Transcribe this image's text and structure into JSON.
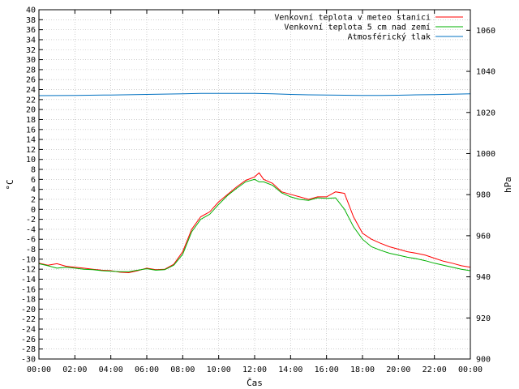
{
  "chart_data": {
    "type": "line",
    "xlabel": "Čas",
    "ylabel_left": "°C",
    "ylabel_right": "hPa",
    "x_ticks": [
      "00:00",
      "02:00",
      "04:00",
      "06:00",
      "08:00",
      "10:00",
      "12:00",
      "14:00",
      "16:00",
      "18:00",
      "20:00",
      "22:00",
      "00:00"
    ],
    "xlim": [
      0,
      24
    ],
    "ylim_left": [
      -30,
      40
    ],
    "ylim_right": [
      900,
      1070
    ],
    "y_ticks_left": [
      -30,
      -28,
      -26,
      -24,
      -22,
      -20,
      -18,
      -16,
      -14,
      -12,
      -10,
      -8,
      -6,
      -4,
      -2,
      0,
      2,
      4,
      6,
      8,
      10,
      12,
      14,
      16,
      18,
      20,
      22,
      24,
      26,
      28,
      30,
      32,
      34,
      36,
      38,
      40
    ],
    "y_ticks_right": [
      900,
      920,
      940,
      960,
      980,
      1000,
      1020,
      1040,
      1060
    ],
    "grid": "on",
    "legend_position": "top-right",
    "series": [
      {
        "name": "Venkovní teplota v meteo stanici",
        "axis": "left",
        "color": "#ff0000",
        "x": [
          0,
          0.5,
          1,
          1.5,
          2,
          2.5,
          3,
          3.5,
          4,
          4.5,
          5,
          5.5,
          6,
          6.5,
          7,
          7.5,
          8,
          8.5,
          9,
          9.5,
          10,
          10.5,
          11,
          11.5,
          12,
          12.25,
          12.5,
          13,
          13.5,
          14,
          14.5,
          15,
          15.5,
          16,
          16.5,
          17,
          17.5,
          18,
          18.5,
          19,
          19.5,
          20,
          20.5,
          21,
          21.5,
          22,
          22.5,
          23,
          23.5,
          24
        ],
        "values": [
          -10.8,
          -11.2,
          -10.9,
          -11.4,
          -11.6,
          -11.8,
          -12.0,
          -12.2,
          -12.3,
          -12.6,
          -12.7,
          -12.3,
          -11.8,
          -12.1,
          -12.0,
          -11.0,
          -8.5,
          -4.0,
          -1.5,
          -0.5,
          1.5,
          3.0,
          4.5,
          5.8,
          6.5,
          7.3,
          6.0,
          5.2,
          3.5,
          3.0,
          2.5,
          2.0,
          2.5,
          2.5,
          3.5,
          3.2,
          -1.5,
          -4.8,
          -6.0,
          -6.8,
          -7.5,
          -8.0,
          -8.5,
          -8.8,
          -9.2,
          -9.8,
          -10.4,
          -10.8,
          -11.3,
          -11.6
        ]
      },
      {
        "name": "Venkovní teplota 5 cm nad zemí",
        "axis": "left",
        "color": "#00b000",
        "x": [
          0,
          0.5,
          1,
          1.5,
          2,
          2.5,
          3,
          3.5,
          4,
          4.5,
          5,
          5.5,
          6,
          6.5,
          7,
          7.5,
          8,
          8.5,
          9,
          9.5,
          10,
          10.5,
          11,
          11.5,
          12,
          12.25,
          12.5,
          13,
          13.5,
          14,
          14.5,
          15,
          15.5,
          16,
          16.5,
          17,
          17.5,
          18,
          18.5,
          19,
          19.5,
          20,
          20.5,
          21,
          21.5,
          22,
          22.5,
          23,
          23.5,
          24
        ],
        "values": [
          -10.9,
          -11.3,
          -11.8,
          -11.6,
          -11.8,
          -12.0,
          -12.1,
          -12.3,
          -12.4,
          -12.5,
          -12.5,
          -12.2,
          -11.9,
          -12.2,
          -12.1,
          -11.2,
          -9.0,
          -4.5,
          -2.0,
          -1.0,
          1.0,
          2.8,
          4.2,
          5.5,
          6.0,
          5.5,
          5.5,
          4.8,
          3.3,
          2.5,
          2.0,
          1.8,
          2.3,
          2.2,
          2.3,
          0.0,
          -3.5,
          -6.0,
          -7.5,
          -8.2,
          -8.8,
          -9.2,
          -9.6,
          -9.9,
          -10.3,
          -10.8,
          -11.2,
          -11.6,
          -12.0,
          -12.3
        ]
      },
      {
        "name": "Atmosférický tlak",
        "axis": "right",
        "color": "#0070c0",
        "x": [
          0,
          2,
          4,
          6,
          8,
          9,
          10,
          11,
          12,
          13,
          14,
          15,
          16,
          17,
          18,
          19,
          20,
          21,
          22,
          23,
          24
        ],
        "values": [
          1028.2,
          1028.3,
          1028.5,
          1028.8,
          1029.1,
          1029.3,
          1029.3,
          1029.3,
          1029.3,
          1029.1,
          1028.8,
          1028.6,
          1028.5,
          1028.4,
          1028.3,
          1028.3,
          1028.4,
          1028.6,
          1028.7,
          1028.9,
          1029.1
        ]
      }
    ]
  }
}
